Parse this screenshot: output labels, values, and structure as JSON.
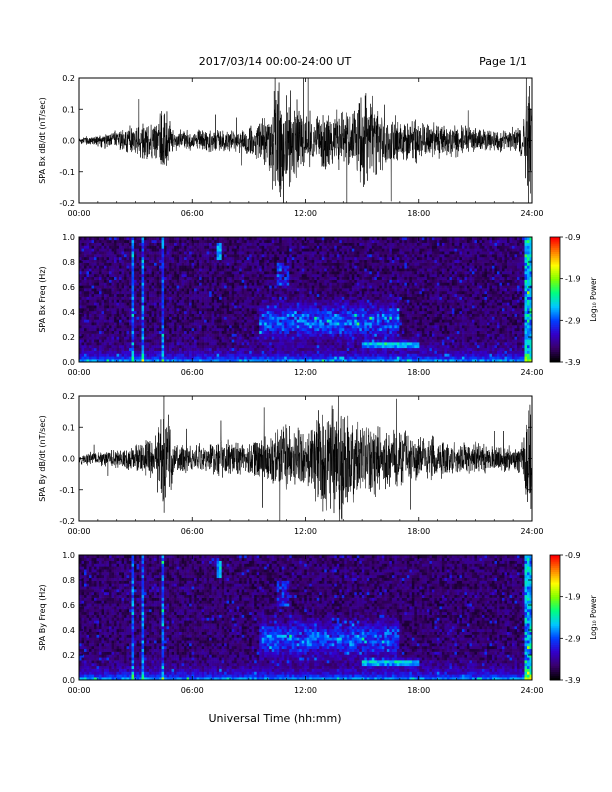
{
  "header": {
    "title": "2017/03/14  00:00-24:00 UT",
    "page": "Page 1/1"
  },
  "xlabel": "Universal Time (hh:mm)",
  "chart_data": [
    {
      "type": "line",
      "ylabel": "SPA Bx dB/dt (nT/sec)",
      "xlim": [
        0,
        24
      ],
      "ylim": [
        -0.2,
        0.2
      ],
      "x_ticks": [
        "00:00",
        "06:00",
        "12:00",
        "18:00",
        "24:00"
      ],
      "y_ticks": [
        "-0.2",
        "-0.1",
        "0.0",
        "0.1",
        "0.2"
      ],
      "y_tick_values": [
        -0.2,
        -0.1,
        0.0,
        0.1,
        0.2
      ],
      "envelope": {
        "hours": [
          0,
          1,
          2,
          3,
          3.5,
          4,
          4.5,
          5,
          6,
          7,
          8,
          9,
          10,
          10.5,
          11,
          11.5,
          12,
          12.5,
          13,
          13.5,
          14,
          14.5,
          15,
          15.5,
          16,
          16.5,
          17,
          18,
          19,
          20,
          21,
          22,
          23,
          23.5,
          23.8,
          24
        ],
        "amplitude": [
          0.01,
          0.02,
          0.03,
          0.05,
          0.08,
          0.06,
          0.12,
          0.03,
          0.03,
          0.04,
          0.03,
          0.04,
          0.09,
          0.2,
          0.15,
          0.14,
          0.1,
          0.08,
          0.1,
          0.08,
          0.1,
          0.09,
          0.15,
          0.14,
          0.1,
          0.09,
          0.07,
          0.06,
          0.05,
          0.05,
          0.04,
          0.03,
          0.04,
          0.05,
          0.2,
          0.2
        ]
      }
    },
    {
      "type": "heatmap",
      "ylabel": "SPA Bx Freq (Hz)",
      "xlim": [
        0,
        24
      ],
      "ylim": [
        0,
        1.0
      ],
      "x_ticks": [
        "00:00",
        "06:00",
        "12:00",
        "18:00",
        "24:00"
      ],
      "y_ticks": [
        "0.0",
        "0.2",
        "0.4",
        "0.6",
        "0.8",
        "1.0"
      ],
      "y_tick_values": [
        0,
        0.2,
        0.4,
        0.6,
        0.8,
        1.0
      ],
      "colorbar": {
        "label": "Log₁₀ Power",
        "range": [
          -3.9,
          -0.9
        ],
        "ticks": [
          "-0.9",
          "-1.9",
          "-2.9",
          "-3.9"
        ],
        "tick_values": [
          -0.9,
          -1.9,
          -2.9,
          -3.9
        ],
        "colors": [
          "#000000",
          "#3a006e",
          "#3300cc",
          "#0040ff",
          "#00c8ff",
          "#00ff80",
          "#80ff00",
          "#ffff00",
          "#ff8000",
          "#ff0000"
        ]
      },
      "features": [
        {
          "t": 3.5,
          "f": 0.2,
          "note": "broadband vertical stripes near 03:30 and 04:30"
        },
        {
          "t": 11.5,
          "f": 0.35,
          "note": "diffuse activity band 0.3-0.4 Hz from 10:00 to 16:00"
        },
        {
          "t": 16.5,
          "f": 0.14,
          "note": "narrow emission near 0.13 Hz 15:00-18:00"
        }
      ]
    },
    {
      "type": "line",
      "ylabel": "SPA By dB/dt (nT/sec)",
      "xlim": [
        0,
        24
      ],
      "ylim": [
        -0.2,
        0.2
      ],
      "x_ticks": [
        "00:00",
        "06:00",
        "12:00",
        "18:00",
        "24:00"
      ],
      "y_ticks": [
        "-0.2",
        "-0.1",
        "0.0",
        "0.1",
        "0.2"
      ],
      "y_tick_values": [
        -0.2,
        -0.1,
        0.0,
        0.1,
        0.2
      ],
      "envelope": {
        "hours": [
          0,
          1,
          2,
          3,
          3.5,
          4,
          4.5,
          5,
          6,
          7,
          8,
          9,
          10,
          10.5,
          11,
          11.5,
          12,
          12.5,
          13,
          13.5,
          14,
          14.5,
          15,
          15.5,
          16,
          16.5,
          17,
          18,
          19,
          20,
          21,
          22,
          23,
          23.5,
          23.8,
          24
        ],
        "amplitude": [
          0.02,
          0.02,
          0.03,
          0.04,
          0.06,
          0.05,
          0.2,
          0.05,
          0.04,
          0.05,
          0.06,
          0.05,
          0.08,
          0.1,
          0.1,
          0.1,
          0.08,
          0.12,
          0.2,
          0.16,
          0.2,
          0.12,
          0.1,
          0.12,
          0.11,
          0.1,
          0.08,
          0.07,
          0.06,
          0.05,
          0.05,
          0.04,
          0.04,
          0.05,
          0.2,
          0.2
        ]
      }
    },
    {
      "type": "heatmap",
      "ylabel": "SPA By Freq (Hz)",
      "xlim": [
        0,
        24
      ],
      "ylim": [
        0,
        1.0
      ],
      "x_ticks": [
        "00:00",
        "06:00",
        "12:00",
        "18:00",
        "24:00"
      ],
      "y_ticks": [
        "0.0",
        "0.2",
        "0.4",
        "0.6",
        "0.8",
        "1.0"
      ],
      "y_tick_values": [
        0,
        0.2,
        0.4,
        0.6,
        0.8,
        1.0
      ],
      "colorbar": {
        "label": "Log₁₀ Power",
        "range": [
          -3.9,
          -0.9
        ],
        "ticks": [
          "-0.9",
          "-1.9",
          "-2.9",
          "-3.9"
        ],
        "tick_values": [
          -0.9,
          -1.9,
          -2.9,
          -3.9
        ],
        "colors": [
          "#000000",
          "#3a006e",
          "#3300cc",
          "#0040ff",
          "#00c8ff",
          "#00ff80",
          "#80ff00",
          "#ffff00",
          "#ff8000",
          "#ff0000"
        ]
      },
      "features": [
        {
          "t": 3.5,
          "f": 0.2,
          "note": "broadband vertical stripes near 03:30 and 04:30"
        },
        {
          "t": 11.5,
          "f": 0.3,
          "note": "diffuse activity band 0.2-0.4 Hz from 10:00 to 16:00"
        },
        {
          "t": 16.5,
          "f": 0.14,
          "note": "narrow emission near 0.14 Hz 15:00-18:00"
        }
      ]
    }
  ]
}
